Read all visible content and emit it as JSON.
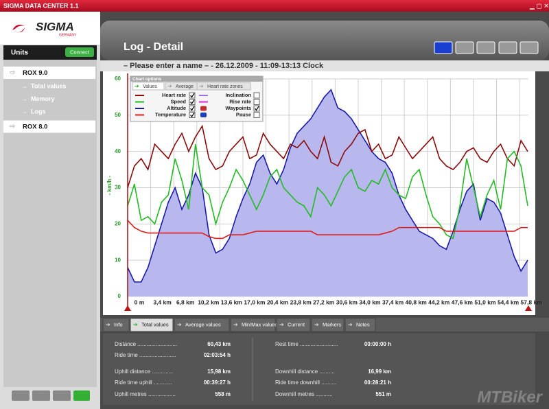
{
  "window_title": "SIGMA DATA CENTER 1.1",
  "logo": "SIGMA",
  "logo_sub": "GERMANY",
  "sidebar": {
    "header": "Units",
    "connect": "Connect",
    "devices": [
      {
        "name": "ROX 9.0",
        "children": [
          "Total values",
          "Memory",
          "Logs"
        ]
      },
      {
        "name": "ROX 8.0",
        "children": []
      }
    ]
  },
  "page_title": "Log - Detail",
  "log_header": "– Please enter a name – - 26.12.2009 - 11:09-13:13 Clock",
  "chart_options": {
    "title": "Chart options",
    "tabs": [
      "Values",
      "Average",
      "Heart rate zones"
    ],
    "extra": [
      {
        "name": "Inclination",
        "color": "#9a6fe0",
        "checked": false
      },
      {
        "name": "Rise rate",
        "color": "#e020e0",
        "checked": false
      },
      {
        "name": "Waypoints",
        "checked": true
      },
      {
        "name": "Pause",
        "checked": false
      }
    ]
  },
  "chart_data": {
    "type": "line",
    "y_label": "- km/h -",
    "x": [
      0,
      1,
      2,
      3,
      4,
      5,
      6,
      7,
      8,
      9,
      10,
      11,
      12,
      13,
      14,
      15,
      16,
      17,
      18,
      19,
      20,
      21,
      22,
      23,
      24,
      25,
      26,
      27,
      28,
      29,
      30,
      31,
      32,
      33,
      34,
      35,
      36,
      37,
      38,
      39,
      40,
      41,
      42,
      43,
      44,
      45,
      46,
      47,
      48,
      49,
      50,
      51,
      52,
      53,
      54,
      55,
      56,
      57,
      58,
      59
    ],
    "series": [
      {
        "name": "Heart rate",
        "color": "#8b0a0a",
        "checked": true,
        "values": [
          30,
          36,
          38,
          35,
          42,
          40,
          38,
          42,
          45,
          40,
          44,
          47,
          38,
          35,
          36,
          40,
          42,
          44,
          38,
          39,
          45,
          42,
          40,
          38,
          42,
          41,
          43,
          40,
          38,
          44,
          37,
          36,
          40,
          42,
          45,
          46,
          40,
          42,
          38,
          39,
          44,
          41,
          38,
          40,
          42,
          44,
          38,
          36,
          35,
          37,
          40,
          41,
          38,
          37,
          40,
          42,
          38,
          36,
          43,
          40
        ]
      },
      {
        "name": "Speed",
        "color": "#22bb22",
        "checked": true,
        "values": [
          25,
          31,
          21,
          22,
          20,
          26,
          28,
          38,
          32,
          24,
          42,
          30,
          28,
          20,
          26,
          30,
          35,
          32,
          28,
          24,
          28,
          33,
          35,
          30,
          28,
          26,
          25,
          22,
          30,
          28,
          25,
          29,
          33,
          35,
          30,
          29,
          32,
          31,
          35,
          30,
          28,
          27,
          33,
          35,
          28,
          22,
          20,
          17,
          16,
          25,
          38,
          30,
          22,
          28,
          32,
          24,
          38,
          40,
          36,
          25
        ]
      },
      {
        "name": "Altitude",
        "color": "#1a1aa8",
        "area_color": "#b8b8ee",
        "checked": true,
        "values": [
          8,
          4,
          4,
          8,
          14,
          20,
          26,
          30,
          24,
          28,
          34,
          30,
          17,
          12,
          13,
          16,
          22,
          27,
          31,
          37,
          39,
          34,
          31,
          35,
          41,
          45,
          47,
          49,
          52,
          55,
          57,
          52,
          51,
          49,
          46,
          43,
          40,
          38,
          37,
          34,
          28,
          24,
          21,
          18,
          17,
          16,
          14,
          13,
          18,
          24,
          29,
          31,
          21,
          27,
          26,
          23,
          17,
          11,
          7,
          10
        ]
      },
      {
        "name": "Temperature",
        "color": "#e01a1a",
        "checked": true,
        "values": [
          21,
          19,
          18,
          17.5,
          17.5,
          17.5,
          17.5,
          17.5,
          17.5,
          17.5,
          17.5,
          17.5,
          16.5,
          16,
          16,
          17,
          17,
          17,
          17.5,
          18,
          18,
          18,
          18,
          18,
          18,
          18,
          18,
          18,
          17,
          17,
          17,
          17,
          17,
          17,
          17,
          17,
          17,
          17,
          17.5,
          18,
          19,
          19,
          19,
          19,
          19,
          19,
          19,
          18,
          18,
          18,
          18,
          18,
          18,
          18,
          18,
          18,
          18,
          18,
          19,
          19
        ]
      }
    ],
    "xlim": [
      0,
      59.1
    ],
    "ylim": [
      0,
      60
    ],
    "xticks": [
      {
        "value": 0,
        "label": "0 m"
      },
      {
        "value": 3.4,
        "label": "3,4 km"
      },
      {
        "value": 6.8,
        "label": "6,8 km"
      },
      {
        "value": 10.2,
        "label": "10,2 km"
      },
      {
        "value": 13.6,
        "label": "13,6 km"
      },
      {
        "value": 17,
        "label": "17,0 km"
      },
      {
        "value": 20.4,
        "label": "20,4 km"
      },
      {
        "value": 23.8,
        "label": "23,8 km"
      },
      {
        "value": 27.2,
        "label": "27,2 km"
      },
      {
        "value": 30.6,
        "label": "30,6 km"
      },
      {
        "value": 34,
        "label": "34,0 km"
      },
      {
        "value": 37.4,
        "label": "37,4 km"
      },
      {
        "value": 40.8,
        "label": "40,8 km"
      },
      {
        "value": 44.2,
        "label": "44,2 km"
      },
      {
        "value": 47.6,
        "label": "47,6 km"
      },
      {
        "value": 51,
        "label": "51,0 km"
      },
      {
        "value": 54.4,
        "label": "54,4 km"
      },
      {
        "value": 57.8,
        "label": "57,8 km"
      }
    ],
    "yticks": [
      0,
      10,
      20,
      30,
      40,
      50,
      60
    ],
    "grid": true
  },
  "tabs": [
    "Info",
    "Total values",
    "Average values",
    "Min/Max values",
    "Current",
    "Markers",
    "Notes"
  ],
  "active_tab": 1,
  "stats": {
    "left": [
      {
        "label": "Distance ..........................",
        "value": "60,43 km"
      },
      {
        "label": "Ride time ........................",
        "value": "02:03:54 h"
      },
      {
        "label": "Uphill distance ..............",
        "value": "15,98 km"
      },
      {
        "label": "Ride time uphill ............",
        "value": "00:39:27 h"
      },
      {
        "label": "Uphill metres ..................",
        "value": "558 m"
      }
    ],
    "right": [
      {
        "label": "Rest time .........................",
        "value": "00:00:00 h"
      },
      {
        "label": "Downhill distance ..........",
        "value": "16,99 km"
      },
      {
        "label": "Ride time downhill ..........",
        "value": "00:28:21 h"
      },
      {
        "label": "Downhill metres ...........",
        "value": "551 m"
      }
    ]
  },
  "watermark": "MTBiker"
}
